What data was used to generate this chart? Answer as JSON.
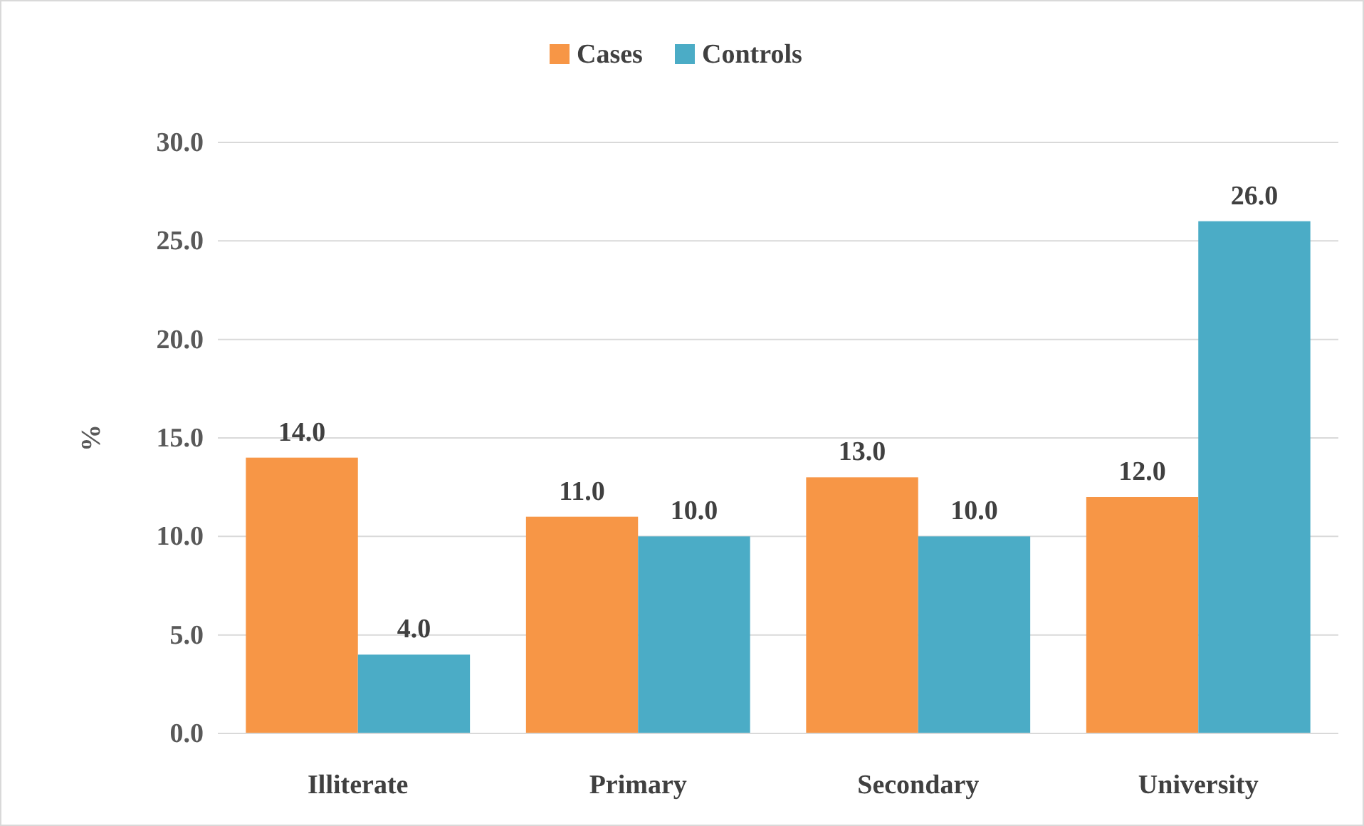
{
  "chart_data": {
    "type": "bar",
    "ylabel": "%",
    "categories": [
      "Illiterate",
      "Primary",
      "Secondary",
      "University"
    ],
    "series": [
      {
        "name": "Cases",
        "color": "#f79646",
        "values": [
          14.0,
          11.0,
          13.0,
          12.0
        ],
        "value_labels": [
          "14.0",
          "11.0",
          "13.0",
          "12.0"
        ]
      },
      {
        "name": "Controls",
        "color": "#4bacc6",
        "values": [
          4.0,
          10.0,
          10.0,
          26.0
        ],
        "value_labels": [
          "4.0",
          "10.0",
          "10.0",
          "26.0"
        ]
      }
    ],
    "ylim": [
      0,
      30
    ],
    "yticks": [
      {
        "value": 0,
        "label": "0.0"
      },
      {
        "value": 5,
        "label": "5.0"
      },
      {
        "value": 10,
        "label": "10.0"
      },
      {
        "value": 15,
        "label": "15.0"
      },
      {
        "value": 20,
        "label": "20.0"
      },
      {
        "value": 25,
        "label": "25.0"
      },
      {
        "value": 30,
        "label": "30.0"
      }
    ],
    "grid": "y",
    "legend": "top"
  }
}
